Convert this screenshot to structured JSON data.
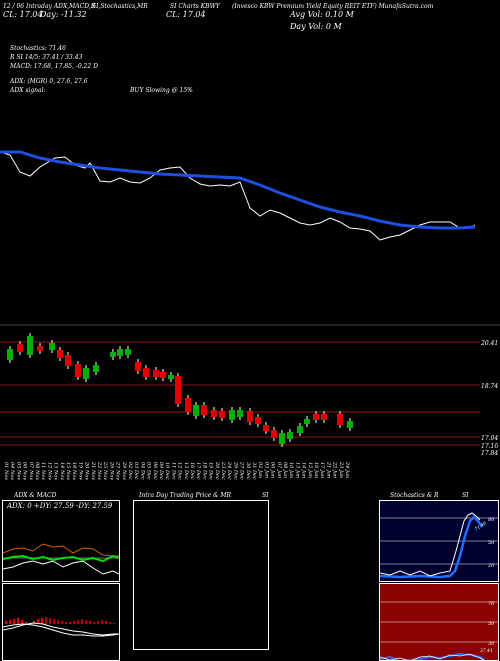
{
  "header": {
    "l1_a": "12 / 06 Intraday ADX,MACD,R",
    "l1_b": "SI,Stochastics,MR",
    "l1_c": "SI Charts KBWY",
    "l1_d": "(Invesco  KBW Premium Yield Equity REIT ETF) MunafaSutra.com",
    "l2_a": "CL: 17.04",
    "l2_b": "Day: -11.32",
    "l2_c": "CL: 17.04",
    "l2_d": "Avg Vol: 0.10  M",
    "l3_d": "Day Vol: 0   M"
  },
  "indicators": {
    "stoch": "Stochastics: 71.46",
    "rsi": "R                    SI 14/5: 37.41 / 33.43",
    "macd": "MACD: 17.68,  17.85,  -0.22  D",
    "adx": "ADX:                         (MGR) 0,  27.6,  27.6",
    "adx_signal": "ADX  signal:",
    "buy": "BUY Slowing @ 15%"
  },
  "price_labels": [
    "20.41",
    "18.74",
    "17.84",
    "17.04",
    "17.16"
  ],
  "date_labels": [
    "01 Nov",
    "04 Nov",
    "05 Nov",
    "06 Nov",
    "07 Nov",
    "08 Nov",
    "11 Nov",
    "12 Nov",
    "13 Nov",
    "14 Nov",
    "15 Nov",
    "18 Nov",
    "19 Nov",
    "20 Nov",
    "21 Nov",
    "22 Nov",
    "25 Nov",
    "26 Nov",
    "27 Nov",
    "29 Nov",
    "02 Dec",
    "03 Dec",
    "04 Dec",
    "05 Dec",
    "06 Dec",
    "09 Dec",
    "10 Dec",
    "11 Dec",
    "12 Dec",
    "13 Dec",
    "16 Dec",
    "17 Dec",
    "18 Dec",
    "19 Dec",
    "20 Dec",
    "23 Dec",
    "24 Dec",
    "26 Dec",
    "27 Dec",
    "30 Dec",
    "31 Dec",
    "02 Jan",
    "03 Jan",
    "06 Jan",
    "07 Jan",
    "08 Jan",
    "10 Jan",
    "13 Jan",
    "14 Jan",
    "15 Jan",
    "16 Jan",
    "17 Jan",
    "21 Jan",
    "22 Jan",
    "23 Jan",
    "24 Jan"
  ],
  "panels": {
    "adx_title": "ADX  & MACD",
    "adx_values": "ADX: 0  +DY: 27.59  -DY: 27.59",
    "intra_title": "Intra  Day Trading Price  & MR",
    "intra_si": "SI",
    "stoch_title": "Stochastics & R",
    "stoch_si": "SI",
    "stoch_ticks": [
      "80",
      "50",
      "20"
    ],
    "rsi_ticks": [
      "70",
      "50",
      "30"
    ],
    "stoch_val": "71.46",
    "rsi_val": "37.41"
  },
  "colors": {
    "up": "#00b000",
    "down": "#e00000",
    "ma": "#1f4fe0",
    "rsi_bg": "#8b0000",
    "stoch_bg": "#000030"
  }
}
